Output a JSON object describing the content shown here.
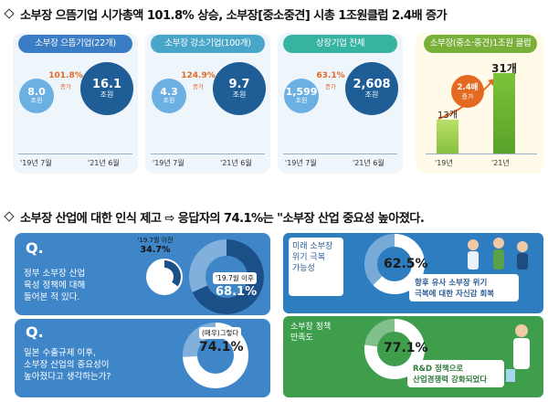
{
  "section1": {
    "title": "소부장 으뜸기업 시가총액 101.8% 상승, 소부장[중소중견] 시총 1조원클럽 2.4배 증가",
    "panels": [
      {
        "pill": "소부장 으뜸기업(22개)",
        "pill_color": "#3a7dc4",
        "growth": "101.8%",
        "growth_label": "증가",
        "before": {
          "value": "8.0",
          "unit": "조원"
        },
        "after": {
          "value": "16.1",
          "unit": "조원"
        },
        "x_before": "'19년 7월",
        "x_after": "'21년 6월"
      },
      {
        "pill": "소부장 강소기업(100개)",
        "pill_color": "#4aa6c9",
        "growth": "124.9%",
        "growth_label": "증가",
        "before": {
          "value": "4.3",
          "unit": "조원"
        },
        "after": {
          "value": "9.7",
          "unit": "조원"
        },
        "x_before": "'19년 7월",
        "x_after": "'21년 6월"
      },
      {
        "pill": "상장기업 전체",
        "pill_color": "#37b3a2",
        "growth": "63.1%",
        "growth_label": "증가",
        "before": {
          "value": "1,599",
          "unit": "조원"
        },
        "after": {
          "value": "2,608",
          "unit": "조원"
        },
        "x_before": "'19년 7월",
        "x_after": "'21년 6월"
      }
    ],
    "club": {
      "pill": "소부장(중소·중견)1조원 클럽",
      "growth": "2.4배",
      "growth_label": "증가",
      "bars": [
        {
          "label": "13개",
          "value": 13,
          "year": "'19년"
        },
        {
          "label": "31개",
          "value": 31,
          "year": "'21년"
        }
      ]
    }
  },
  "section2": {
    "title": "소부장 산업에 대한 인식 제고 ⇨ 응답자의 74.1%는 \"소부장 산업 중요성 높아졌다.",
    "q1": {
      "letter": "Q.",
      "text": "정부 소부장 산업\n육성 정책에 대해\n들어본 적 있다.",
      "prior_label": "'19.7월 이전",
      "prior_value": "34.7%",
      "prior_pct": 34.7,
      "after_label": "'19.7월 이후",
      "after_value": "68.1%",
      "after_pct": 68.1
    },
    "q2": {
      "letter": "Q.",
      "text": "일본 수출규제 이후,\n소부장 산업의 중요성이\n높아졌다고 생각하는가?",
      "label": "(매우)그렇다",
      "value": "74.1%",
      "pct": 74.1
    },
    "p1": {
      "label": "미래 소부장\n위기 극복\n가능성",
      "value": "62.5%",
      "pct": 62.5,
      "caption": "향후 유사 소부장 위기\n극복에 대한 자신감 회복"
    },
    "p2": {
      "label": "소부장 정책\n만족도",
      "value": "77.1%",
      "pct": 77.1,
      "caption": "R&D 정책으로\n산업경쟁력 강화되었다"
    }
  },
  "colors": {
    "orange": "#e46a22",
    "navy": "#1f5d96",
    "green": "#9dcf3a",
    "right_blue": "#2f7dc1",
    "right_green": "#3e9e4c"
  }
}
